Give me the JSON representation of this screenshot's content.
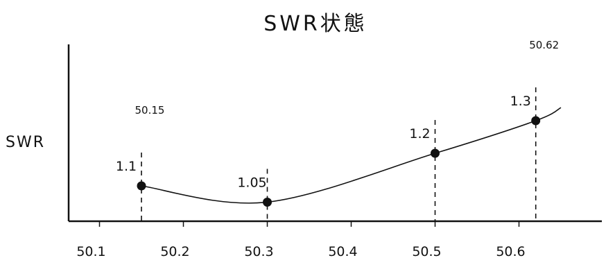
{
  "chart_data": {
    "type": "line",
    "title": "SWR状態",
    "xlabel": "",
    "ylabel": "SWR",
    "x_ticks": [
      "50.1",
      "50.2",
      "50.3",
      "50.4",
      "50.5",
      "50.6"
    ],
    "x_tick_values": [
      50.1,
      50.2,
      50.3,
      50.4,
      50.5,
      50.6
    ],
    "xlim": [
      50.05,
      50.68
    ],
    "ylim": [
      1.0,
      1.6
    ],
    "grid": false,
    "points": [
      {
        "x": 50.15,
        "y": 1.1,
        "label": "1.1",
        "x_label": "50.15"
      },
      {
        "x": 50.3,
        "y": 1.05,
        "label": "1.05",
        "x_label": ""
      },
      {
        "x": 50.5,
        "y": 1.2,
        "label": "1.2",
        "x_label": ""
      },
      {
        "x": 50.62,
        "y": 1.3,
        "label": "1.3",
        "x_label": "50.62"
      }
    ],
    "curve_end": {
      "x": 50.65,
      "y": 1.34
    },
    "colors": {
      "ink": "#111111"
    }
  }
}
